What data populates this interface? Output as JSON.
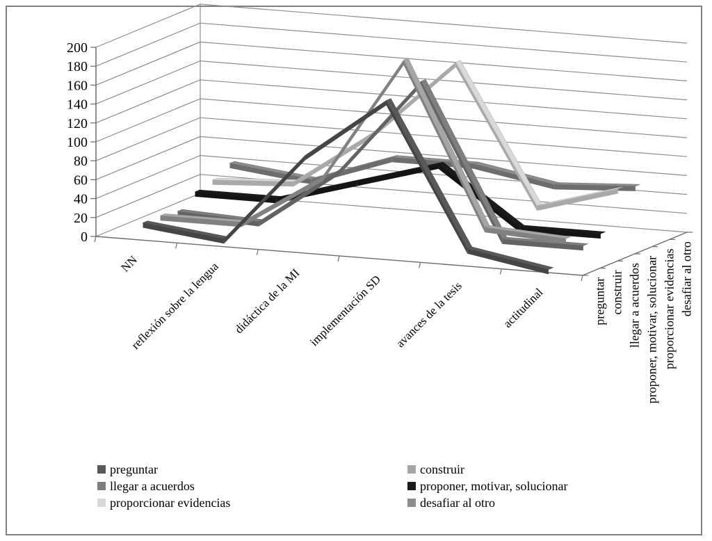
{
  "chart_data": {
    "type": "line",
    "three_d": true,
    "categories": [
      "NN",
      "reflexión sobre la lengua",
      "didáctica de la MI",
      "implementación SD",
      "avances de la tesis",
      "actitudinal"
    ],
    "ylim": [
      0,
      200
    ],
    "yticks": [
      0,
      20,
      40,
      60,
      80,
      100,
      120,
      140,
      160,
      180,
      200
    ],
    "grid": true,
    "legend": "bottom",
    "series": [
      {
        "name": "preguntar",
        "color": "#595959",
        "values": [
          15,
          5,
          100,
          165,
          15,
          0
        ]
      },
      {
        "name": "construir",
        "color": "#a6a6a6",
        "values": [
          15,
          15,
          70,
          200,
          30,
          25
        ]
      },
      {
        "name": "llegar a acuerdos",
        "color": "#7f7f7f",
        "values": [
          12,
          8,
          70,
          170,
          10,
          10
        ]
      },
      {
        "name": "proponer, motivar, solucionar",
        "color": "#1a1a1a",
        "values": [
          25,
          25,
          50,
          75,
          15,
          15
        ]
      },
      {
        "name": "proporcionar evidencias",
        "color": "#d9d9d9",
        "values": [
          30,
          35,
          95,
          175,
          30,
          55
        ]
      },
      {
        "name": "desafiar al otro",
        "color": "#8c8c8c",
        "values": [
          40,
          30,
          60,
          60,
          45,
          50
        ]
      }
    ]
  }
}
